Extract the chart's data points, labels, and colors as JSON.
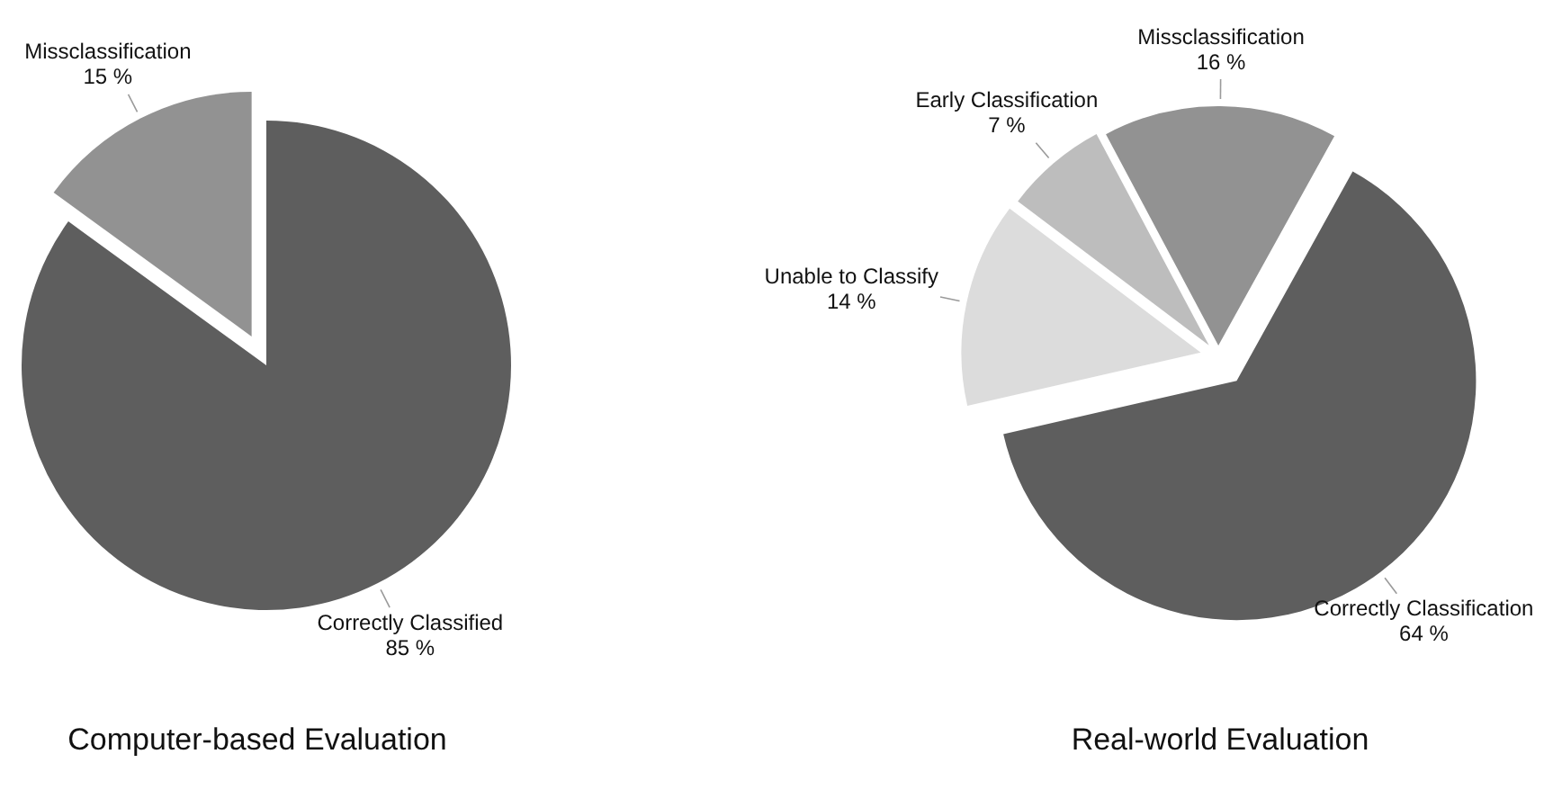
{
  "chart_data": [
    {
      "type": "pie",
      "title": "Computer-based Evaluation",
      "categories": [
        "Correctly Classified",
        "Missclassification"
      ],
      "values": [
        85,
        15
      ],
      "colors": [
        "#5e5e5e",
        "#929292"
      ],
      "value_labels": [
        "85 %",
        "15 %"
      ]
    },
    {
      "type": "pie",
      "title": "Real-world Evaluation",
      "categories": [
        "Correctly Classification",
        "Unable to Classify",
        "Early Classification",
        "Missclassification"
      ],
      "values": [
        64,
        14,
        7,
        16
      ],
      "colors": [
        "#5e5e5e",
        "#dcdcdc",
        "#bdbdbd",
        "#929292"
      ],
      "value_labels": [
        "64 %",
        "14 %",
        "7 %",
        "16 %"
      ]
    }
  ]
}
